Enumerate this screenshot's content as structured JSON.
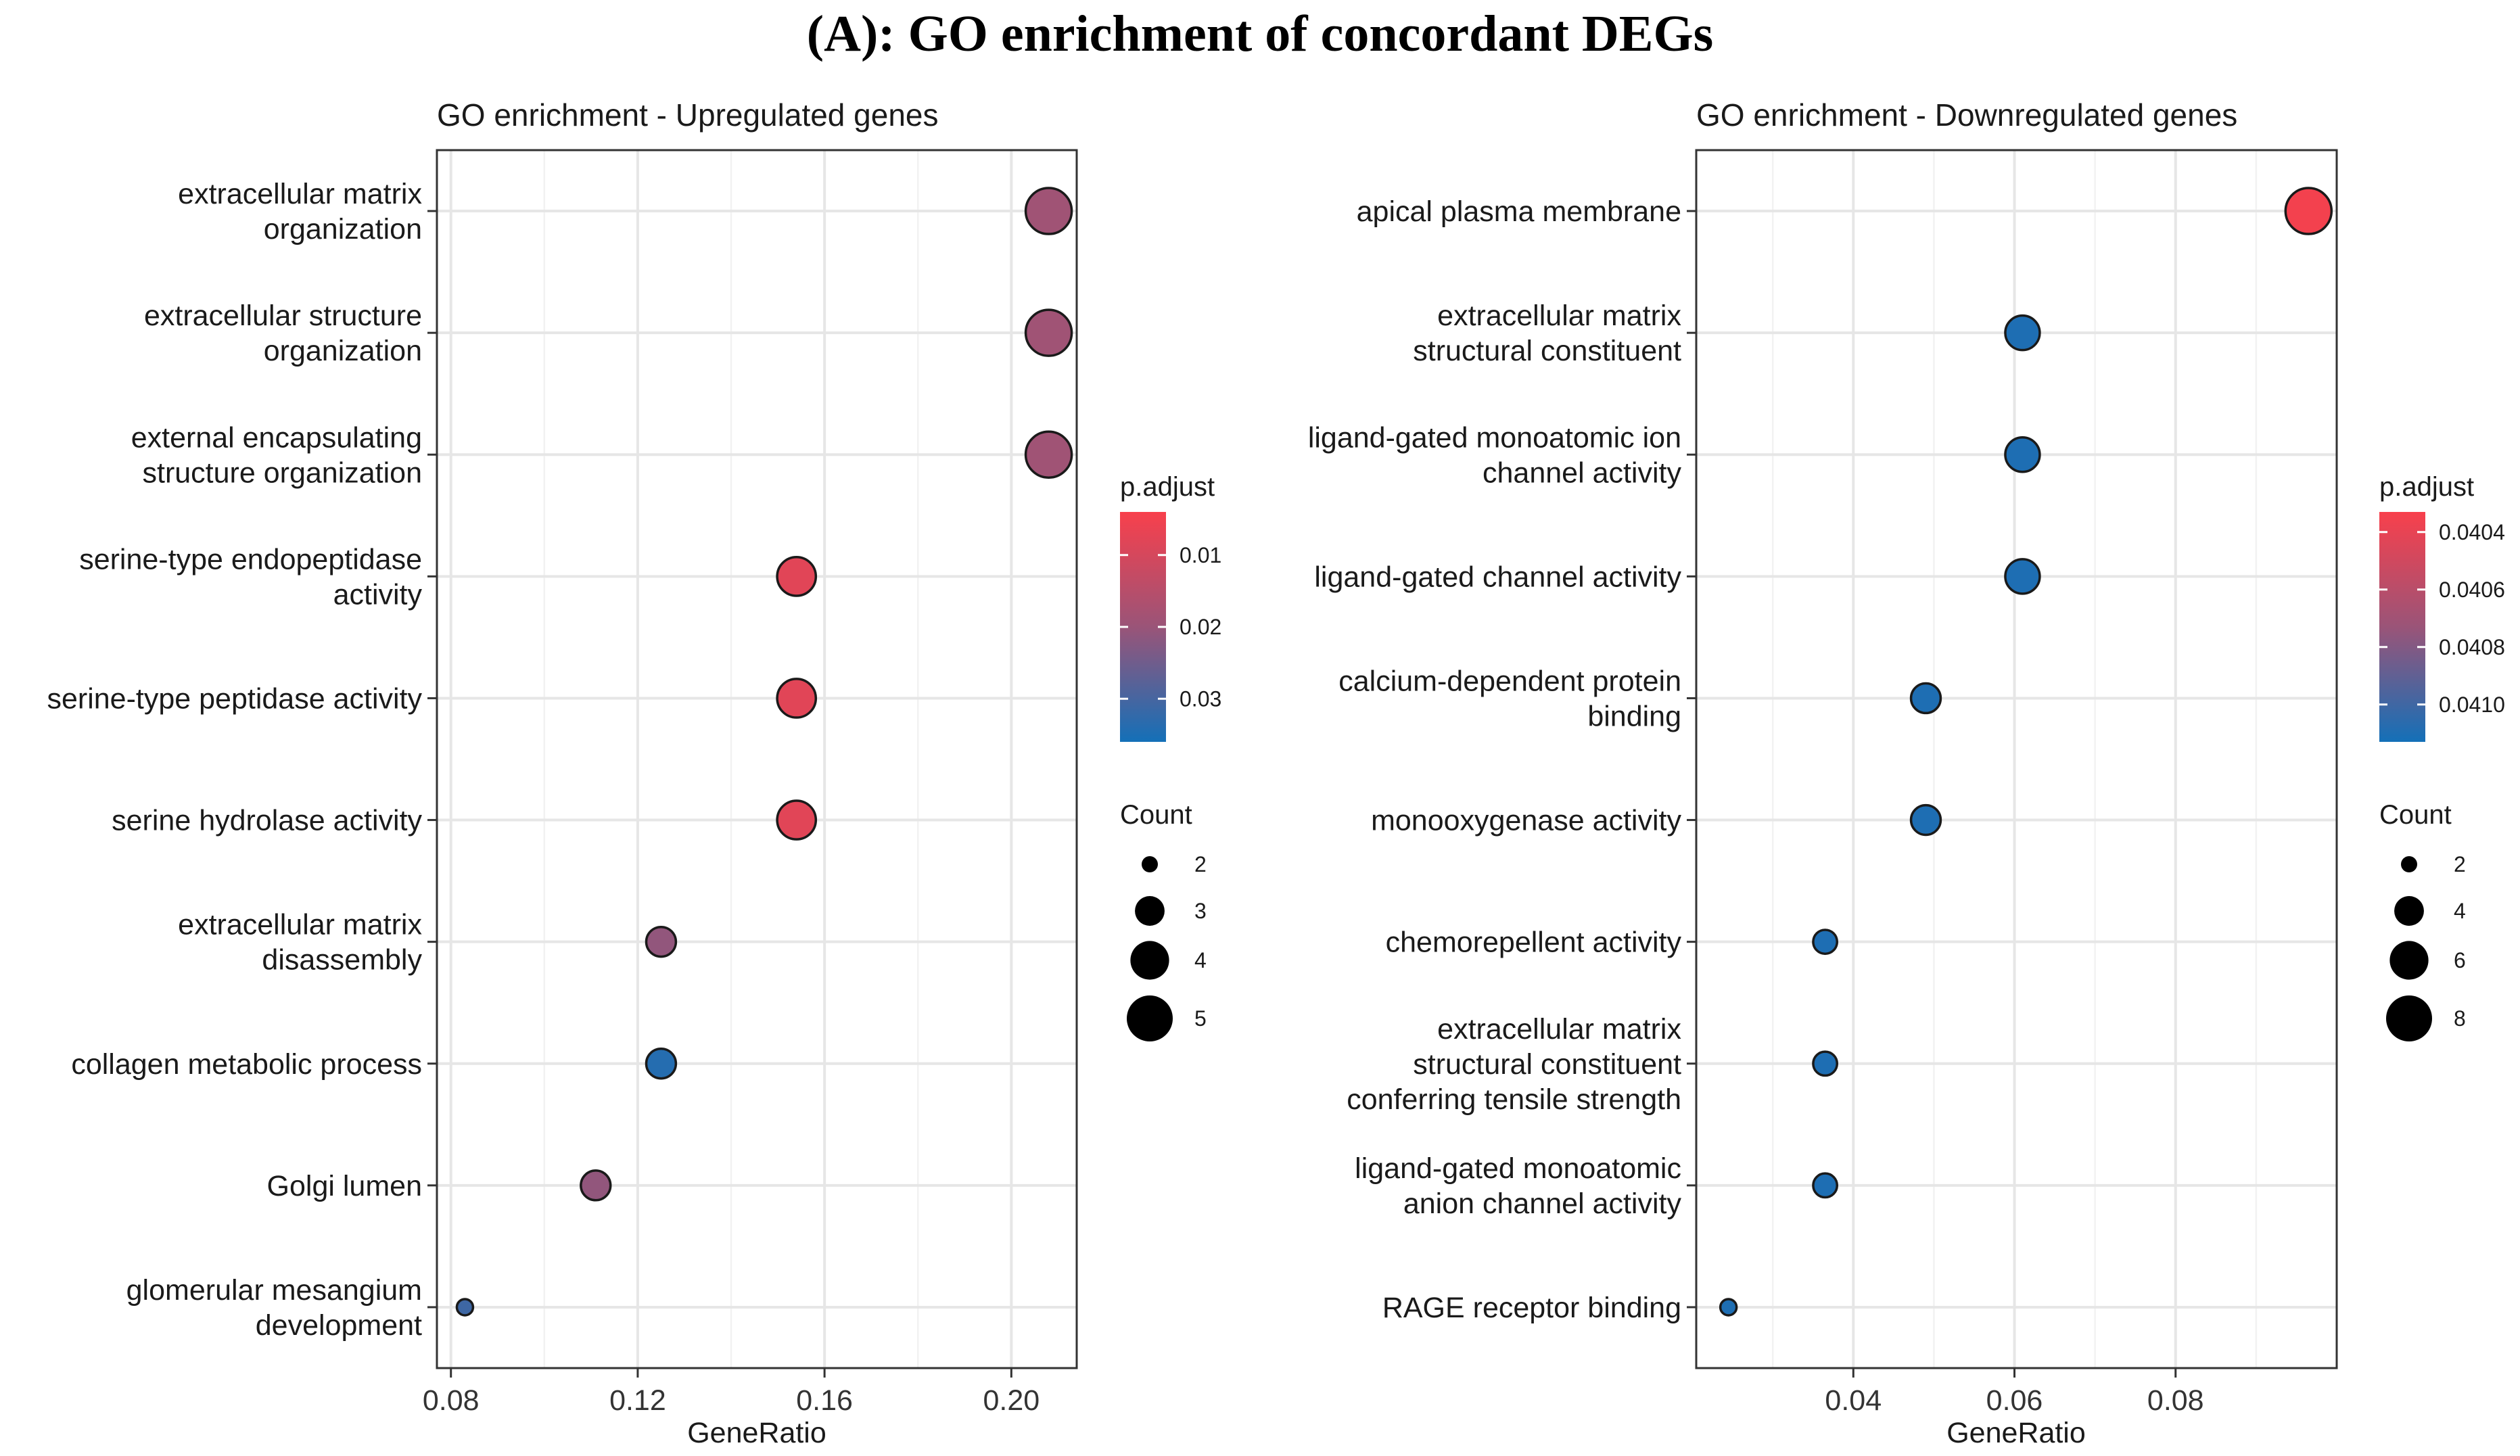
{
  "figure_title": "(A): GO enrichment of concordant DEGs",
  "colors": {
    "low_p": "#f8404c",
    "high_p": "#1470b8"
  },
  "chart_data": [
    {
      "type": "scatter",
      "title": "GO enrichment - Upregulated genes",
      "xlabel": "GeneRatio",
      "ylabel": "",
      "xlim": [
        0.077,
        0.214
      ],
      "xticks": [
        0.08,
        0.12,
        0.16,
        0.2
      ],
      "xtick_labels": [
        "0.08",
        "0.12",
        "0.16",
        "0.20"
      ],
      "categories": [
        {
          "lines": [
            "extracellular matrix",
            "organization"
          ],
          "gene_ratio": 0.208,
          "count": 5,
          "p_adjust": 0.019
        },
        {
          "lines": [
            "extracellular structure",
            "organization"
          ],
          "gene_ratio": 0.208,
          "count": 5,
          "p_adjust": 0.019
        },
        {
          "lines": [
            "external encapsulating",
            "structure organization"
          ],
          "gene_ratio": 0.208,
          "count": 5,
          "p_adjust": 0.019
        },
        {
          "lines": [
            "serine-type endopeptidase",
            "activity"
          ],
          "gene_ratio": 0.154,
          "count": 4,
          "p_adjust": 0.008
        },
        {
          "lines": [
            "serine-type peptidase activity"
          ],
          "gene_ratio": 0.154,
          "count": 4,
          "p_adjust": 0.008
        },
        {
          "lines": [
            "serine hydrolase activity"
          ],
          "gene_ratio": 0.154,
          "count": 4,
          "p_adjust": 0.008
        },
        {
          "lines": [
            "extracellular matrix",
            "disassembly"
          ],
          "gene_ratio": 0.125,
          "count": 3,
          "p_adjust": 0.021
        },
        {
          "lines": [
            "collagen metabolic process"
          ],
          "gene_ratio": 0.125,
          "count": 3,
          "p_adjust": 0.034
        },
        {
          "lines": [
            "Golgi lumen"
          ],
          "gene_ratio": 0.111,
          "count": 3,
          "p_adjust": 0.021
        },
        {
          "lines": [
            "glomerular mesangium",
            "development"
          ],
          "gene_ratio": 0.083,
          "count": 2,
          "p_adjust": 0.031
        }
      ],
      "color_legend": {
        "title": "p.adjust",
        "range": [
          0.004,
          0.036
        ],
        "ticks": [
          0.01,
          0.02,
          0.03
        ],
        "tick_labels": [
          "0.01",
          "0.02",
          "0.03"
        ]
      },
      "size_legend": {
        "title": "Count",
        "range": [
          2,
          5
        ],
        "values": [
          2,
          3,
          4,
          5
        ],
        "labels": [
          "2",
          "3",
          "4",
          "5"
        ]
      }
    },
    {
      "type": "scatter",
      "title": "GO enrichment - Downregulated genes",
      "xlabel": "GeneRatio",
      "ylabel": "",
      "xlim": [
        0.0205,
        0.1
      ],
      "xticks": [
        0.04,
        0.06,
        0.08
      ],
      "xtick_labels": [
        "0.04",
        "0.06",
        "0.08"
      ],
      "categories": [
        {
          "lines": [
            "apical plasma membrane"
          ],
          "gene_ratio": 0.0965,
          "count": 8,
          "p_adjust": 0.04035
        },
        {
          "lines": [
            "extracellular matrix",
            "structural constituent"
          ],
          "gene_ratio": 0.061,
          "count": 5,
          "p_adjust": 0.0411
        },
        {
          "lines": [
            "ligand-gated monoatomic ion",
            "channel activity"
          ],
          "gene_ratio": 0.061,
          "count": 5,
          "p_adjust": 0.0411
        },
        {
          "lines": [
            "ligand-gated channel activity"
          ],
          "gene_ratio": 0.061,
          "count": 5,
          "p_adjust": 0.0411
        },
        {
          "lines": [
            "calcium-dependent protein",
            "binding"
          ],
          "gene_ratio": 0.049,
          "count": 4,
          "p_adjust": 0.0411
        },
        {
          "lines": [
            "monooxygenase activity"
          ],
          "gene_ratio": 0.049,
          "count": 4,
          "p_adjust": 0.0411
        },
        {
          "lines": [
            "chemorepellent activity"
          ],
          "gene_ratio": 0.0365,
          "count": 3,
          "p_adjust": 0.0411
        },
        {
          "lines": [
            "extracellular matrix",
            "structural constituent",
            "conferring tensile strength"
          ],
          "gene_ratio": 0.0365,
          "count": 3,
          "p_adjust": 0.0411
        },
        {
          "lines": [
            "ligand-gated monoatomic",
            "anion channel activity"
          ],
          "gene_ratio": 0.0365,
          "count": 3,
          "p_adjust": 0.0411
        },
        {
          "lines": [
            "RAGE receptor binding"
          ],
          "gene_ratio": 0.0245,
          "count": 2,
          "p_adjust": 0.0411
        }
      ],
      "color_legend": {
        "title": "p.adjust",
        "range": [
          0.04033,
          0.04113
        ],
        "ticks": [
          0.0404,
          0.0406,
          0.0408,
          0.041
        ],
        "tick_labels": [
          "0.0404",
          "0.0406",
          "0.0408",
          "0.0410"
        ]
      },
      "size_legend": {
        "title": "Count",
        "range": [
          2,
          8
        ],
        "values": [
          2,
          4,
          6,
          8
        ],
        "labels": [
          "2",
          "4",
          "6",
          "8"
        ]
      }
    }
  ]
}
